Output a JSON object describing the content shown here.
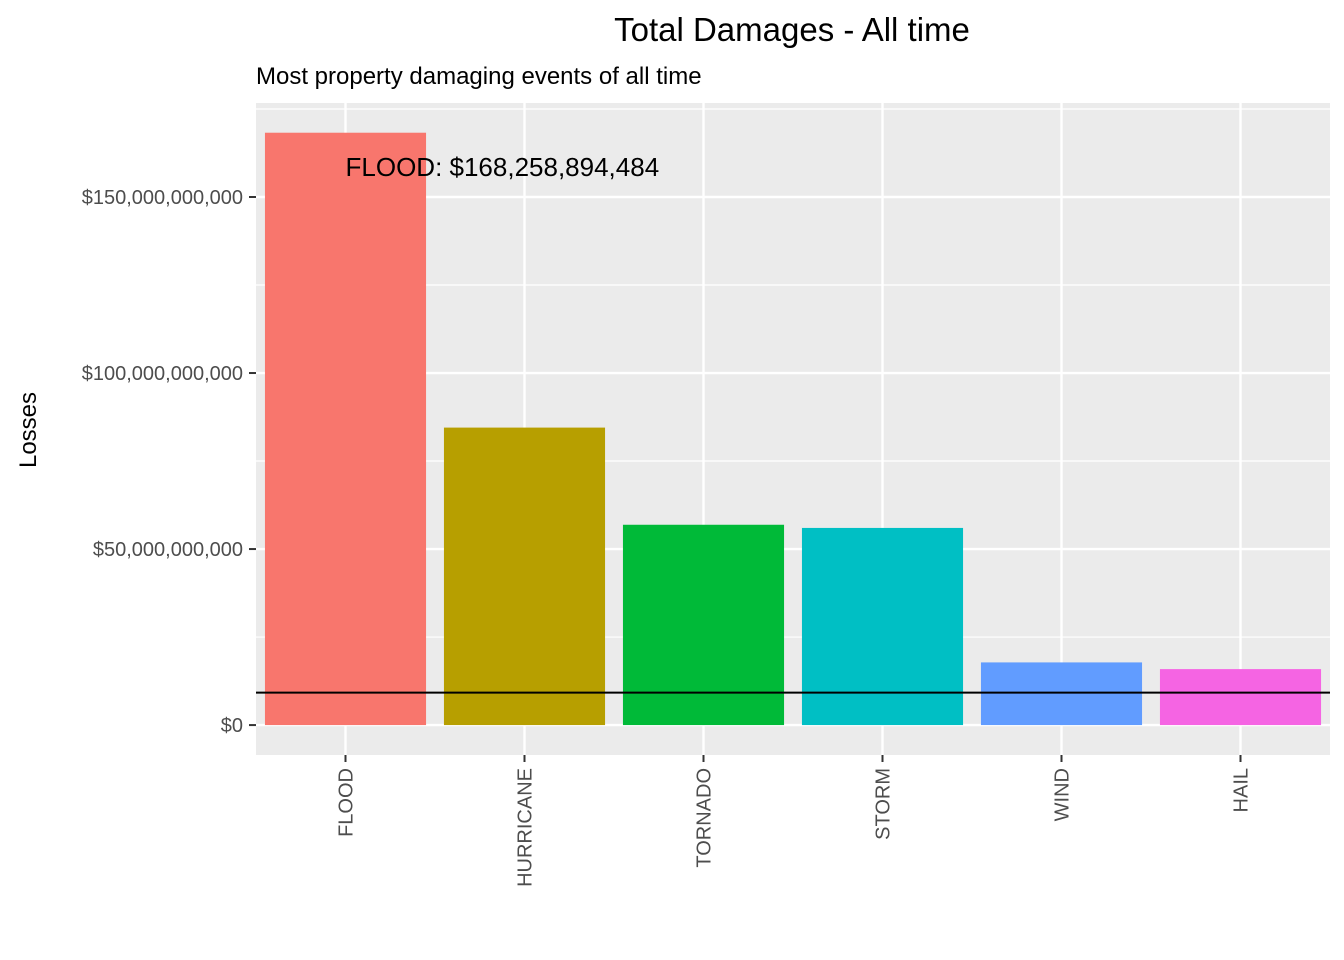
{
  "chart_data": {
    "type": "bar",
    "title": "Total Damages - All time",
    "subtitle": "Most property damaging events of all time",
    "xlabel": "",
    "ylabel": "Losses",
    "categories": [
      "FLOOD",
      "HURRICANE",
      "TORNADO",
      "STORM",
      "WIND",
      "HAIL"
    ],
    "values": [
      168258894484,
      84500000000,
      56900000000,
      56000000000,
      17800000000,
      15900000000
    ],
    "colors": [
      "#F8766D",
      "#B79F00",
      "#00BA38",
      "#00BFC4",
      "#619CFF",
      "#F564E3"
    ],
    "ylim": [
      -8500000000,
      176700000000
    ],
    "y_ticks": [
      0,
      50000000000,
      100000000000,
      150000000000
    ],
    "y_tick_labels": [
      "$0",
      "$50,000,000,000",
      "$100,000,000,000",
      "$150,000,000,000"
    ],
    "reference_line": 9200000000,
    "annotation": {
      "text": "FLOOD: $168,258,894,484",
      "x": "FLOOD",
      "y": 158500000000
    },
    "grid": true,
    "legend": "none",
    "panel_background": "#EBEBEB"
  }
}
